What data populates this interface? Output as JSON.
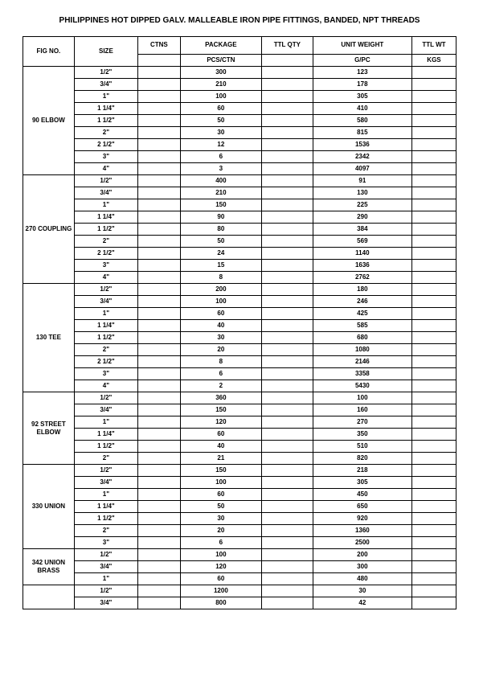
{
  "title": "PHILIPPINES HOT DIPPED GALV. MALLEABLE IRON PIPE FITTINGS, BANDED, NPT THREADS",
  "headers": {
    "figno": "FIG NO.",
    "size": "SIZE",
    "ctns": "CTNS",
    "package": "PACKAGE",
    "ttlqty": "TTL QTY",
    "unitweight": "UNIT WEIGHT",
    "ttlwt": "TTL WT",
    "pcsctn": "PCS/CTN",
    "gpc": "G/PC",
    "kgs": "KGS"
  },
  "groups": [
    {
      "name": "90 ELBOW",
      "rows": [
        {
          "size": "1/2\"",
          "ctns": "",
          "pkg": "300",
          "qty": "",
          "uw": "123",
          "wt": ""
        },
        {
          "size": "3/4\"",
          "ctns": "",
          "pkg": "210",
          "qty": "",
          "uw": "178",
          "wt": ""
        },
        {
          "size": "1\"",
          "ctns": "",
          "pkg": "100",
          "qty": "",
          "uw": "305",
          "wt": ""
        },
        {
          "size": "1 1/4\"",
          "ctns": "",
          "pkg": "60",
          "qty": "",
          "uw": "410",
          "wt": ""
        },
        {
          "size": "1 1/2\"",
          "ctns": "",
          "pkg": "50",
          "qty": "",
          "uw": "580",
          "wt": ""
        },
        {
          "size": "2\"",
          "ctns": "",
          "pkg": "30",
          "qty": "",
          "uw": "815",
          "wt": ""
        },
        {
          "size": "2 1/2\"",
          "ctns": "",
          "pkg": "12",
          "qty": "",
          "uw": "1536",
          "wt": ""
        },
        {
          "size": "3\"",
          "ctns": "",
          "pkg": "6",
          "qty": "",
          "uw": "2342",
          "wt": ""
        },
        {
          "size": "4\"",
          "ctns": "",
          "pkg": "3",
          "qty": "",
          "uw": "4097",
          "wt": ""
        }
      ]
    },
    {
      "name": "270 COUPLING",
      "rows": [
        {
          "size": "1/2\"",
          "ctns": "",
          "pkg": "400",
          "qty": "",
          "uw": "91",
          "wt": ""
        },
        {
          "size": "3/4\"",
          "ctns": "",
          "pkg": "210",
          "qty": "",
          "uw": "130",
          "wt": ""
        },
        {
          "size": "1\"",
          "ctns": "",
          "pkg": "150",
          "qty": "",
          "uw": "225",
          "wt": ""
        },
        {
          "size": "1 1/4\"",
          "ctns": "",
          "pkg": "90",
          "qty": "",
          "uw": "290",
          "wt": ""
        },
        {
          "size": "1 1/2\"",
          "ctns": "",
          "pkg": "80",
          "qty": "",
          "uw": "384",
          "wt": ""
        },
        {
          "size": "2\"",
          "ctns": "",
          "pkg": "50",
          "qty": "",
          "uw": "569",
          "wt": ""
        },
        {
          "size": "2 1/2\"",
          "ctns": "",
          "pkg": "24",
          "qty": "",
          "uw": "1140",
          "wt": ""
        },
        {
          "size": "3\"",
          "ctns": "",
          "pkg": "15",
          "qty": "",
          "uw": "1636",
          "wt": ""
        },
        {
          "size": "4\"",
          "ctns": "",
          "pkg": "8",
          "qty": "",
          "uw": "2762",
          "wt": ""
        }
      ]
    },
    {
      "name": "130 TEE",
      "rows": [
        {
          "size": "1/2\"",
          "ctns": "",
          "pkg": "200",
          "qty": "",
          "uw": "180",
          "wt": ""
        },
        {
          "size": "3/4\"",
          "ctns": "",
          "pkg": "100",
          "qty": "",
          "uw": "246",
          "wt": ""
        },
        {
          "size": "1\"",
          "ctns": "",
          "pkg": "60",
          "qty": "",
          "uw": "425",
          "wt": ""
        },
        {
          "size": "1 1/4\"",
          "ctns": "",
          "pkg": "40",
          "qty": "",
          "uw": "585",
          "wt": ""
        },
        {
          "size": "1 1/2\"",
          "ctns": "",
          "pkg": "30",
          "qty": "",
          "uw": "680",
          "wt": ""
        },
        {
          "size": "2\"",
          "ctns": "",
          "pkg": "20",
          "qty": "",
          "uw": "1080",
          "wt": ""
        },
        {
          "size": "2 1/2\"",
          "ctns": "",
          "pkg": "8",
          "qty": "",
          "uw": "2146",
          "wt": ""
        },
        {
          "size": "3\"",
          "ctns": "",
          "pkg": "6",
          "qty": "",
          "uw": "3358",
          "wt": ""
        },
        {
          "size": "4\"",
          "ctns": "",
          "pkg": "2",
          "qty": "",
          "uw": "5430",
          "wt": ""
        }
      ]
    },
    {
      "name": "92 STREET ELBOW",
      "rows": [
        {
          "size": "1/2\"",
          "ctns": "",
          "pkg": "360",
          "qty": "",
          "uw": "100",
          "wt": ""
        },
        {
          "size": "3/4\"",
          "ctns": "",
          "pkg": "150",
          "qty": "",
          "uw": "160",
          "wt": ""
        },
        {
          "size": "1\"",
          "ctns": "",
          "pkg": "120",
          "qty": "",
          "uw": "270",
          "wt": ""
        },
        {
          "size": "1 1/4\"",
          "ctns": "",
          "pkg": "60",
          "qty": "",
          "uw": "350",
          "wt": ""
        },
        {
          "size": "1 1/2\"",
          "ctns": "",
          "pkg": "40",
          "qty": "",
          "uw": "510",
          "wt": ""
        },
        {
          "size": "2\"",
          "ctns": "",
          "pkg": "21",
          "qty": "",
          "uw": "820",
          "wt": ""
        }
      ]
    },
    {
      "name": "330 UNION",
      "rows": [
        {
          "size": "1/2\"",
          "ctns": "",
          "pkg": "150",
          "qty": "",
          "uw": "218",
          "wt": ""
        },
        {
          "size": "3/4\"",
          "ctns": "",
          "pkg": "100",
          "qty": "",
          "uw": "305",
          "wt": ""
        },
        {
          "size": "1\"",
          "ctns": "",
          "pkg": "60",
          "qty": "",
          "uw": "450",
          "wt": ""
        },
        {
          "size": "1 1/4\"",
          "ctns": "",
          "pkg": "50",
          "qty": "",
          "uw": "650",
          "wt": ""
        },
        {
          "size": "1 1/2\"",
          "ctns": "",
          "pkg": "30",
          "qty": "",
          "uw": "920",
          "wt": ""
        },
        {
          "size": "2\"",
          "ctns": "",
          "pkg": "20",
          "qty": "",
          "uw": "1360",
          "wt": ""
        },
        {
          "size": "3\"",
          "ctns": "",
          "pkg": "6",
          "qty": "",
          "uw": "2500",
          "wt": ""
        }
      ]
    },
    {
      "name": "342 UNION BRASS",
      "rows": [
        {
          "size": "1/2\"",
          "ctns": "",
          "pkg": "100",
          "qty": "",
          "uw": "200",
          "wt": ""
        },
        {
          "size": "3/4\"",
          "ctns": "",
          "pkg": "120",
          "qty": "",
          "uw": "300",
          "wt": ""
        },
        {
          "size": "1\"",
          "ctns": "",
          "pkg": "60",
          "qty": "",
          "uw": "480",
          "wt": ""
        }
      ]
    },
    {
      "name": "",
      "rows": [
        {
          "size": "1/2\"",
          "ctns": "",
          "pkg": "1200",
          "qty": "",
          "uw": "30",
          "wt": ""
        },
        {
          "size": "3/4\"",
          "ctns": "",
          "pkg": "800",
          "qty": "",
          "uw": "42",
          "wt": ""
        }
      ]
    }
  ]
}
